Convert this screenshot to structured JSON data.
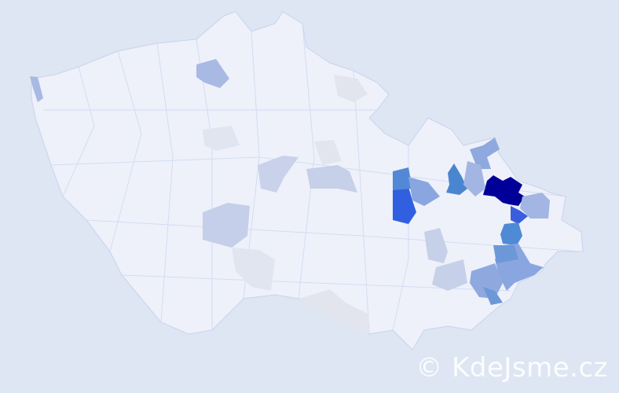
{
  "map": {
    "background": "#dde6f2",
    "base_fill": "#eef1fa",
    "border_color": "#c8d3ee",
    "highlighted_regions": [
      {
        "level": "max",
        "color": "#000099"
      },
      {
        "level": "high",
        "color": "#3060e0"
      },
      {
        "level": "high",
        "color": "#3a5fdd"
      },
      {
        "level": "medium-high",
        "color": "#4f8ad4"
      },
      {
        "level": "medium-high",
        "color": "#5288d6"
      },
      {
        "level": "medium-high",
        "color": "#4a86d0"
      },
      {
        "level": "medium",
        "color": "#8aa6e0"
      },
      {
        "level": "medium",
        "color": "#8fa9df"
      },
      {
        "level": "medium",
        "color": "#a3b5e3"
      },
      {
        "level": "medium",
        "color": "#6c98d8"
      },
      {
        "level": "low",
        "color": "#c5cfe9"
      },
      {
        "level": "low",
        "color": "#c9d2ea"
      },
      {
        "level": "low",
        "color": "#c6d0e8"
      },
      {
        "level": "low",
        "color": "#a8b9e3"
      },
      {
        "level": "minimal",
        "color": "#e1e5ef"
      },
      {
        "level": "minimal",
        "color": "#e2e5ee"
      }
    ]
  },
  "watermark": "© KdeJsme.cz"
}
